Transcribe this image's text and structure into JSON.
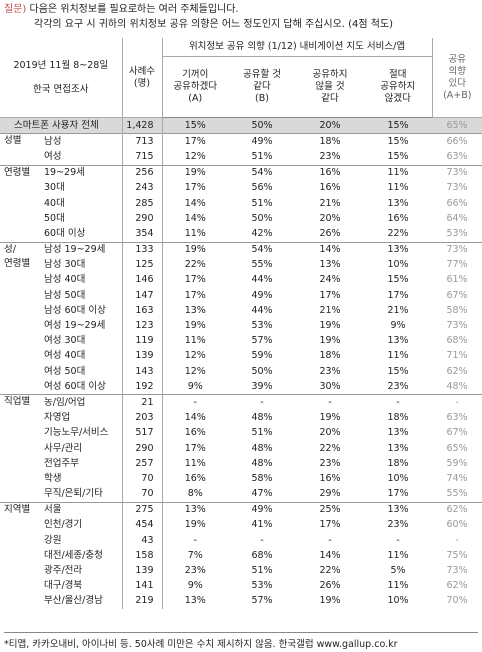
{
  "question": {
    "label": "질문)",
    "line1": "다음은 위치정보를 필요로하는 여러 주체들입니다.",
    "line2": "각각의 요구 시 귀하의 위치정보 공유 의향은 어느 정도인지 답해 주십시오. (4점 척도)"
  },
  "table": {
    "header": {
      "survey": "2019년 11월 8~28일",
      "method": "한국 면접조사",
      "n": "사례수\n(명)",
      "group": "위치정보 공유 의향 (1/12) 내비게이션 지도 서비스/앱",
      "columns": [
        "기꺼이\n공유하겠다\n(A)",
        "공유할 것\n같다\n(B)",
        "공유하지\n않을 것\n같다",
        "절대\n공유하지\n않겠다"
      ],
      "sum": "공유\n의향\n있다\n(A+B)"
    },
    "total": {
      "label": "스마트폰 사용자 전체",
      "n": "1,428",
      "cells": [
        "15%",
        "50%",
        "20%",
        "15%",
        "65%"
      ]
    },
    "groups": [
      {
        "label": "성별",
        "rows": [
          {
            "label": "남성",
            "n": "713",
            "cells": [
              "17%",
              "49%",
              "18%",
              "15%",
              "66%"
            ]
          },
          {
            "label": "여성",
            "n": "715",
            "cells": [
              "12%",
              "51%",
              "23%",
              "15%",
              "63%"
            ]
          }
        ]
      },
      {
        "label": "연령별",
        "rows": [
          {
            "label": "19~29세",
            "n": "256",
            "cells": [
              "19%",
              "54%",
              "16%",
              "11%",
              "73%"
            ]
          },
          {
            "label": "30대",
            "n": "243",
            "cells": [
              "17%",
              "56%",
              "16%",
              "11%",
              "73%"
            ]
          },
          {
            "label": "40대",
            "n": "285",
            "cells": [
              "14%",
              "51%",
              "21%",
              "13%",
              "66%"
            ]
          },
          {
            "label": "50대",
            "n": "290",
            "cells": [
              "14%",
              "50%",
              "20%",
              "16%",
              "64%"
            ]
          },
          {
            "label": "60대 이상",
            "n": "354",
            "cells": [
              "11%",
              "42%",
              "26%",
              "22%",
              "53%"
            ]
          }
        ]
      },
      {
        "label": "성/\n연령별",
        "rows": [
          {
            "label": "남성 19~29세",
            "n": "133",
            "cells": [
              "19%",
              "54%",
              "14%",
              "13%",
              "73%"
            ]
          },
          {
            "label": "남성 30대",
            "n": "125",
            "cells": [
              "22%",
              "55%",
              "13%",
              "10%",
              "77%"
            ]
          },
          {
            "label": "남성 40대",
            "n": "146",
            "cells": [
              "17%",
              "44%",
              "24%",
              "15%",
              "61%"
            ]
          },
          {
            "label": "남성 50대",
            "n": "147",
            "cells": [
              "17%",
              "49%",
              "17%",
              "17%",
              "67%"
            ]
          },
          {
            "label": "남성 60대 이상",
            "n": "163",
            "cells": [
              "13%",
              "44%",
              "21%",
              "21%",
              "58%"
            ]
          },
          {
            "label": "여성 19~29세",
            "n": "123",
            "cells": [
              "19%",
              "53%",
              "19%",
              "9%",
              "73%"
            ]
          },
          {
            "label": "여성 30대",
            "n": "119",
            "cells": [
              "11%",
              "57%",
              "19%",
              "13%",
              "68%"
            ]
          },
          {
            "label": "여성 40대",
            "n": "139",
            "cells": [
              "12%",
              "59%",
              "18%",
              "11%",
              "71%"
            ]
          },
          {
            "label": "여성 50대",
            "n": "143",
            "cells": [
              "12%",
              "50%",
              "23%",
              "15%",
              "62%"
            ]
          },
          {
            "label": "여성 60대 이상",
            "n": "192",
            "cells": [
              "9%",
              "39%",
              "30%",
              "23%",
              "48%"
            ]
          }
        ]
      },
      {
        "label": "직업별",
        "rows": [
          {
            "label": "농/임/어업",
            "n": "21",
            "cells": [
              "-",
              "-",
              "-",
              "-",
              "-"
            ]
          },
          {
            "label": "자영업",
            "n": "203",
            "cells": [
              "14%",
              "48%",
              "19%",
              "18%",
              "63%"
            ]
          },
          {
            "label": "기능노무/서비스",
            "n": "517",
            "cells": [
              "16%",
              "51%",
              "20%",
              "13%",
              "67%"
            ]
          },
          {
            "label": "사무/관리",
            "n": "290",
            "cells": [
              "17%",
              "48%",
              "22%",
              "13%",
              "65%"
            ]
          },
          {
            "label": "전업주부",
            "n": "257",
            "cells": [
              "11%",
              "48%",
              "23%",
              "18%",
              "59%"
            ]
          },
          {
            "label": "학생",
            "n": "70",
            "cells": [
              "16%",
              "58%",
              "16%",
              "10%",
              "74%"
            ]
          },
          {
            "label": "무직/은퇴/기타",
            "n": "70",
            "cells": [
              "8%",
              "47%",
              "29%",
              "17%",
              "55%"
            ]
          }
        ]
      },
      {
        "label": "지역별",
        "rows": [
          {
            "label": "서울",
            "n": "275",
            "cells": [
              "13%",
              "49%",
              "25%",
              "13%",
              "62%"
            ]
          },
          {
            "label": "인천/경기",
            "n": "454",
            "cells": [
              "19%",
              "41%",
              "17%",
              "23%",
              "60%"
            ]
          },
          {
            "label": "강원",
            "n": "43",
            "cells": [
              "-",
              "-",
              "-",
              "-",
              "-"
            ]
          },
          {
            "label": "대전/세종/충청",
            "n": "158",
            "cells": [
              "7%",
              "68%",
              "14%",
              "11%",
              "75%"
            ]
          },
          {
            "label": "광주/전라",
            "n": "139",
            "cells": [
              "23%",
              "51%",
              "22%",
              "5%",
              "73%"
            ]
          },
          {
            "label": "대구/경북",
            "n": "141",
            "cells": [
              "9%",
              "53%",
              "26%",
              "11%",
              "62%"
            ]
          },
          {
            "label": "부산/울산/경남",
            "n": "219",
            "cells": [
              "13%",
              "57%",
              "19%",
              "10%",
              "70%"
            ]
          }
        ]
      }
    ]
  },
  "footer": "*티맵, 카카오내비, 아이나비 등. 50사례 미만은 수치 제시하지 않음. 한국갤럽 www.gallup.co.kr"
}
